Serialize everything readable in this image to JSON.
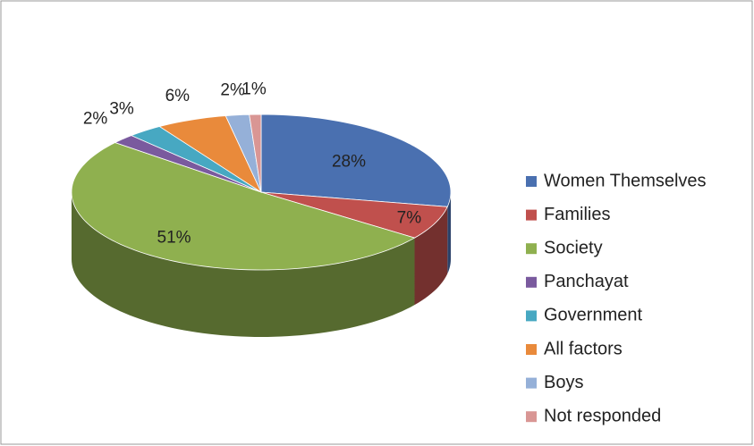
{
  "chart_data": {
    "type": "pie",
    "categories": [
      "Women Themselves",
      "Families",
      "Society",
      "Panchayat",
      "Government",
      "All factors",
      "Boys",
      "Not responded"
    ],
    "values": [
      28,
      7,
      51,
      2,
      3,
      6,
      2,
      1
    ],
    "value_labels": [
      "28%",
      "7%",
      "51%",
      "2%",
      "3%",
      "6%",
      "2%",
      "1%"
    ],
    "colors": [
      "#4a70b0",
      "#c0504d",
      "#8fb04f",
      "#7a5a9e",
      "#47a8c2",
      "#e98a3b",
      "#95b0d8",
      "#d99694"
    ],
    "legend": "right"
  }
}
